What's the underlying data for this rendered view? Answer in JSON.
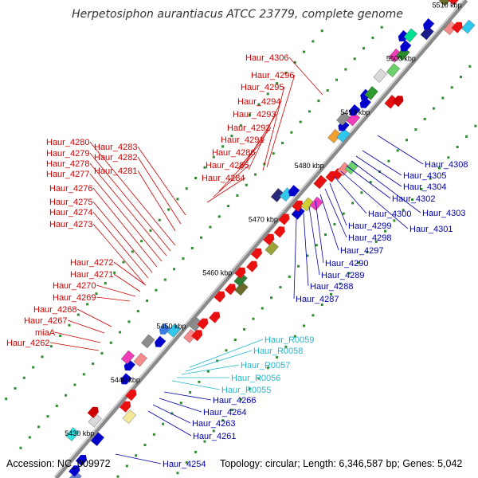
{
  "title": "Herpetosiphon aurantiacus ATCC 23779, complete genome",
  "footer": {
    "accession": "Accession: NC_009972",
    "topology": "Topology: circular; Length: 6,346,587 bp; Genes: 5,042"
  },
  "colors": {
    "forward_label": "#cc0000",
    "reverse_label": "#0000aa",
    "rna_label": "#22b8cc",
    "backbone": "#8a8a8a"
  },
  "scale_ticks": [
    "5430 kbp",
    "5440 kbp",
    "5450 kbp",
    "5460 kbp",
    "5470 kbp",
    "5480 kbp",
    "5490 kbp",
    "5500 kbp",
    "5510 kbp"
  ],
  "forward_labels": [
    "Haur_4306",
    "Haur_4296",
    "Haur_4295",
    "Haur_4294",
    "Haur_4293",
    "Haur_4292",
    "Haur_4291",
    "Haur_4286",
    "Haur_4285",
    "Haur_4284",
    "Haur_4283",
    "Haur_4282",
    "Haur_4281",
    "Haur_4280",
    "Haur_4279",
    "Haur_4278",
    "Haur_4277",
    "Haur_4276",
    "Haur_4275",
    "Haur_4274",
    "Haur_4273",
    "Haur_4272",
    "Haur_4271",
    "Haur_4270",
    "Haur_4269",
    "Haur_4268",
    "Haur_4267",
    "miaA",
    "Haur_4262"
  ],
  "reverse_labels": [
    "Haur_4308",
    "Haur_4305",
    "Haur_4304",
    "Haur_4303",
    "Haur_4302",
    "Haur_4301",
    "Haur_4300",
    "Haur_4299",
    "Haur_4298",
    "Haur_4297",
    "Haur_4290",
    "Haur_4289",
    "Haur_4288",
    "Haur_4287",
    "Haur_4266",
    "Haur_4264",
    "Haur_4263",
    "Haur_4261",
    "Haur_4254"
  ],
  "rna_labels": [
    "Haur_R0059",
    "Haur_R0058",
    "Haur_R0057",
    "Haur_R0056",
    "Haur_R0055"
  ]
}
